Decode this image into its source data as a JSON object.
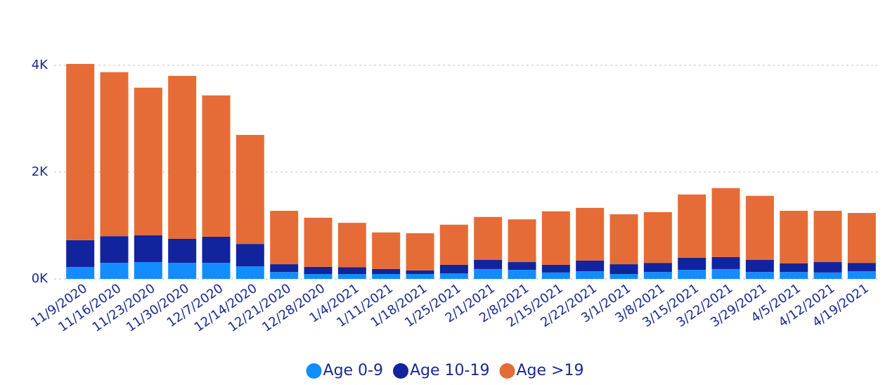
{
  "chart_data": {
    "type": "stacked_bar",
    "categories": [
      "11/9/2020",
      "11/16/2020",
      "11/23/2020",
      "11/30/2020",
      "12/7/2020",
      "12/14/2020",
      "12/21/2020",
      "12/28/2020",
      "1/4/2021",
      "1/11/2021",
      "1/18/2021",
      "1/25/2021",
      "2/1/2021",
      "2/8/2021",
      "2/15/2021",
      "2/22/2021",
      "3/1/2021",
      "3/8/2021",
      "3/15/2021",
      "3/22/2021",
      "3/29/2021",
      "4/5/2021",
      "4/12/2021",
      "4/19/2021"
    ],
    "series": [
      {
        "name": "Age 0-9",
        "color": "#118dff",
        "values": [
          224,
          300,
          315,
          300,
          300,
          235,
          130,
          90,
          90,
          90,
          90,
          105,
          185,
          170,
          120,
          145,
          90,
          130,
          170,
          185,
          130,
          130,
          120,
          145
        ]
      },
      {
        "name": "Age 10-19",
        "color": "#12239e",
        "values": [
          500,
          500,
          500,
          450,
          490,
          420,
          145,
          135,
          130,
          95,
          70,
          160,
          170,
          145,
          145,
          200,
          185,
          170,
          225,
          225,
          225,
          160,
          195,
          155
        ]
      },
      {
        "name": "Age >19",
        "color": "#e66c37",
        "values": [
          3300,
          3070,
          2765,
          3050,
          2645,
          2040,
          1000,
          920,
          830,
          685,
          695,
          750,
          805,
          800,
          1000,
          985,
          935,
          950,
          1185,
          1290,
          1200,
          985,
          960,
          935
        ]
      }
    ],
    "ylim": [
      0,
      4300
    ],
    "yticks": [
      {
        "value": 0,
        "label": "0K"
      },
      {
        "value": 2000,
        "label": "2K"
      },
      {
        "value": 4000,
        "label": "4K"
      }
    ],
    "grid": true,
    "legend": "bottom"
  }
}
